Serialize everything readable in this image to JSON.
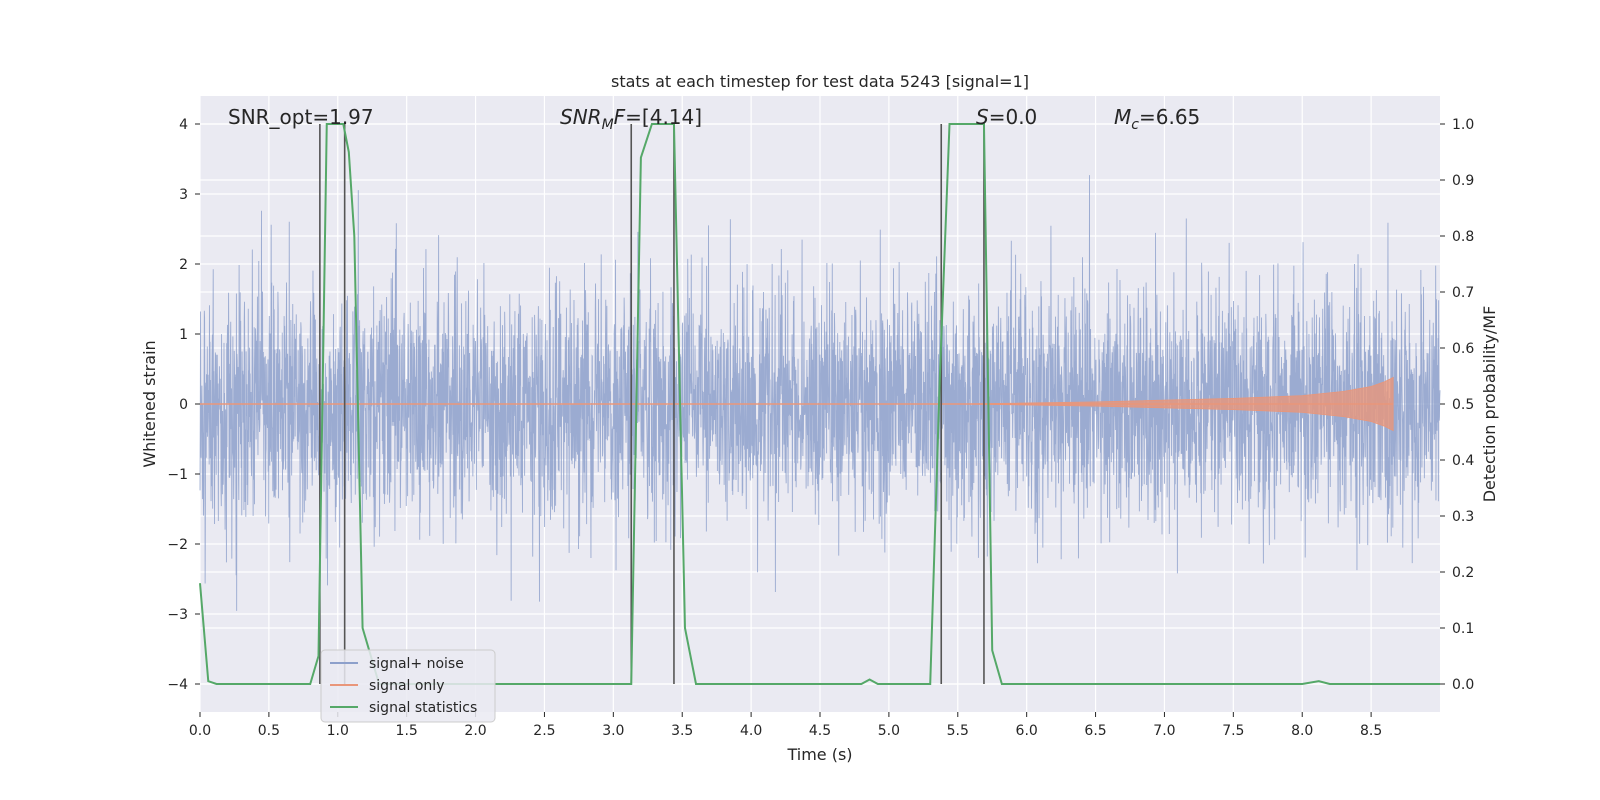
{
  "chart_data": {
    "type": "line",
    "title": "stats at each timestep for test data 5243 [signal=1]",
    "xlabel": "Time (s)",
    "ylabel": "Whitened strain",
    "y2label": "Detection probability/MF",
    "xlim": [
      0.0,
      9.0
    ],
    "ylim": [
      -4.4,
      4.4
    ],
    "y2lim": [
      -0.05,
      1.05
    ],
    "xticks": [
      "0.0",
      "0.5",
      "1.0",
      "1.5",
      "2.0",
      "2.5",
      "3.0",
      "3.5",
      "4.0",
      "4.5",
      "5.0",
      "5.5",
      "6.0",
      "6.5",
      "7.0",
      "7.5",
      "8.0",
      "8.5"
    ],
    "yticks": [
      "−4",
      "−3",
      "−2",
      "−1",
      "0",
      "1",
      "2",
      "3",
      "4"
    ],
    "y2ticks": [
      "0.0",
      "0.1",
      "0.2",
      "0.3",
      "0.4",
      "0.5",
      "0.6",
      "0.7",
      "0.8",
      "0.9",
      "1.0"
    ],
    "grid": true,
    "legend_position": "lower-left",
    "annotations": [
      {
        "id": "snr-opt",
        "prefix": "SNR_opt=",
        "value": "1.97"
      },
      {
        "id": "snr-mf",
        "prefix": "SNR",
        "sub": "M",
        "mid": "F=",
        "value": "[4.14]"
      },
      {
        "id": "s-value",
        "prefix": "S",
        "mid": "=",
        "value": "0.0"
      },
      {
        "id": "mc-value",
        "prefix": "M",
        "sub": "c",
        "mid": "=",
        "value": "6.65"
      }
    ],
    "vertical_markers": [
      0.87,
      1.05,
      3.13,
      3.44,
      5.38,
      5.69
    ],
    "series": [
      {
        "name": "signal+ noise",
        "color": "#8da0cb",
        "noise_sigma": 0.85,
        "x_range": [
          0.0,
          9.0
        ]
      },
      {
        "name": "signal only",
        "color": "#e9967a",
        "envelope": [
          [
            5.5,
            0.0
          ],
          [
            6.5,
            0.03
          ],
          [
            7.5,
            0.08
          ],
          [
            8.0,
            0.12
          ],
          [
            8.3,
            0.18
          ],
          [
            8.5,
            0.25
          ],
          [
            8.6,
            0.32
          ],
          [
            8.66,
            0.38
          ]
        ],
        "x_range": [
          0.0,
          8.66
        ]
      },
      {
        "name": "signal statistics",
        "color": "#55a868",
        "x": [
          0.0,
          0.06,
          0.12,
          0.8,
          0.86,
          0.92,
          1.0,
          1.04,
          1.08,
          1.12,
          1.18,
          1.3,
          3.13,
          3.2,
          3.28,
          3.36,
          3.44,
          3.52,
          3.6,
          4.8,
          4.86,
          4.92,
          5.0,
          5.3,
          5.37,
          5.44,
          5.52,
          5.6,
          5.69,
          5.75,
          5.82,
          8.0,
          8.12,
          8.2,
          9.0
        ],
        "y": [
          0.18,
          0.005,
          0.0,
          0.0,
          0.05,
          1.0,
          1.0,
          1.0,
          0.95,
          0.8,
          0.1,
          0.0,
          0.0,
          0.94,
          1.0,
          1.0,
          1.0,
          0.1,
          0.0,
          0.0,
          0.008,
          0.0,
          0.0,
          0.0,
          0.55,
          1.0,
          1.0,
          1.0,
          1.0,
          0.06,
          0.0,
          0.0,
          0.005,
          0.0,
          0.0
        ]
      }
    ]
  }
}
